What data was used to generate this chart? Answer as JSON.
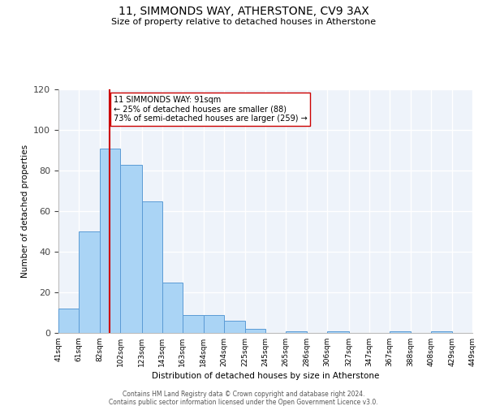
{
  "title": "11, SIMMONDS WAY, ATHERSTONE, CV9 3AX",
  "subtitle": "Size of property relative to detached houses in Atherstone",
  "xlabel": "Distribution of detached houses by size in Atherstone",
  "ylabel": "Number of detached properties",
  "bar_color": "#aad4f5",
  "bar_edge_color": "#5b9bd5",
  "background_color": "#eef3fa",
  "grid_color": "#ffffff",
  "annotation_line_color": "#cc0000",
  "annotation_box_edge": "#cc0000",
  "annotation_line1": "11 SIMMONDS WAY: 91sqm",
  "annotation_line2": "← 25% of detached houses are smaller (88)",
  "annotation_line3": "73% of semi-detached houses are larger (259) →",
  "property_line_x": 91,
  "bin_edges": [
    41,
    61,
    82,
    102,
    123,
    143,
    163,
    184,
    204,
    225,
    245,
    265,
    286,
    306,
    327,
    347,
    367,
    388,
    408,
    429,
    449
  ],
  "bin_counts": [
    12,
    50,
    91,
    83,
    65,
    25,
    9,
    9,
    6,
    2,
    0,
    1,
    0,
    1,
    0,
    0,
    1,
    0,
    1,
    0
  ],
  "tick_labels": [
    "41sqm",
    "61sqm",
    "82sqm",
    "102sqm",
    "123sqm",
    "143sqm",
    "163sqm",
    "184sqm",
    "204sqm",
    "225sqm",
    "245sqm",
    "265sqm",
    "286sqm",
    "306sqm",
    "327sqm",
    "347sqm",
    "367sqm",
    "388sqm",
    "408sqm",
    "429sqm",
    "449sqm"
  ],
  "ylim": [
    0,
    120
  ],
  "yticks": [
    0,
    20,
    40,
    60,
    80,
    100,
    120
  ],
  "footnote1": "Contains HM Land Registry data © Crown copyright and database right 2024.",
  "footnote2": "Contains public sector information licensed under the Open Government Licence v3.0."
}
